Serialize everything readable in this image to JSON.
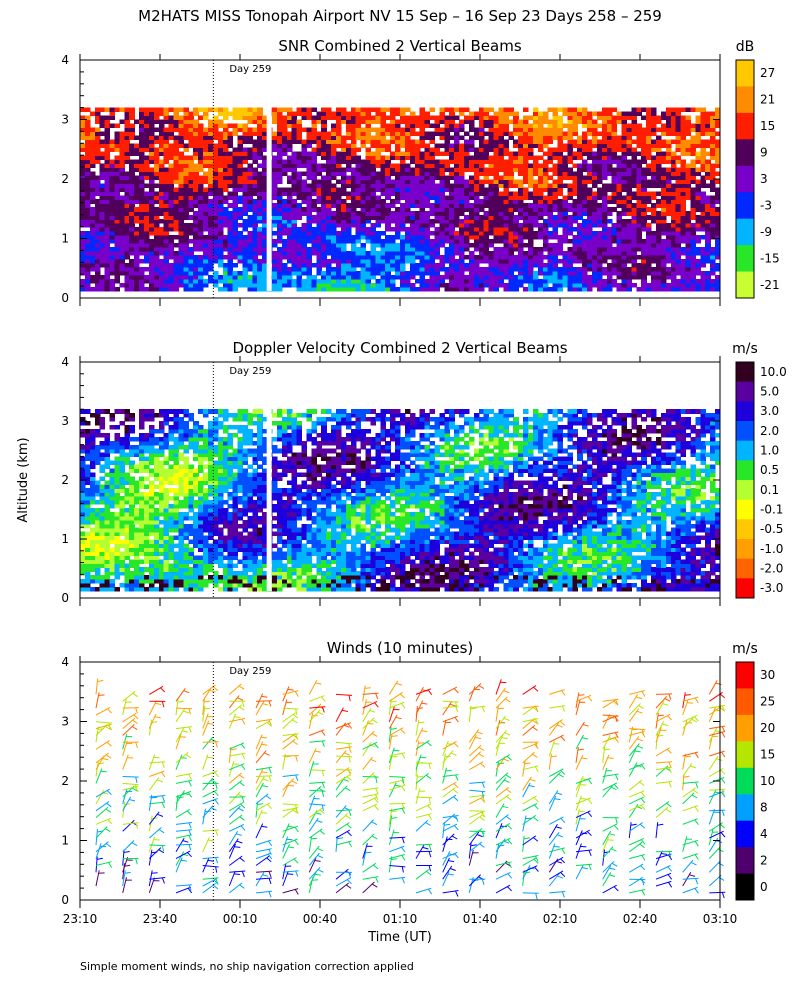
{
  "page": {
    "title": "M2HATS MISS Tonopah Airport NV  15 Sep – 16 Sep 23 Days 258 – 259",
    "ylabel": "Altitude (km)",
    "xlabel": "Time (UT)",
    "footnote": "Simple moment winds, no ship navigation correction applied",
    "day_marker_label": "Day 259"
  },
  "chart_data": [
    {
      "type": "heatmap",
      "title": "SNR Combined 2 Vertical Beams",
      "unit": "dB",
      "x_ticks": [
        "23:10",
        "23:40",
        "00:10",
        "00:40",
        "01:10",
        "01:40",
        "02:10",
        "02:40",
        "03:10"
      ],
      "y_ticks": [
        "0",
        "1",
        "2",
        "3",
        "4"
      ],
      "ylim": [
        0,
        4
      ],
      "colorbar_labels": [
        "27",
        "21",
        "15",
        "9",
        "3",
        "-3",
        "-9",
        "-15",
        "-21"
      ],
      "colors": [
        "#ffc800",
        "#ff8c00",
        "#ff1e00",
        "#50005a",
        "#7800c8",
        "#0028ff",
        "#00b4ff",
        "#28e628",
        "#c8ff32"
      ],
      "data_top_km": 3.2,
      "day_marker_time": "00:00"
    },
    {
      "type": "heatmap",
      "title": "Doppler Velocity Combined 2 Vertical Beams",
      "unit": "m/s",
      "x_ticks": [
        "23:10",
        "23:40",
        "00:10",
        "00:40",
        "01:10",
        "01:40",
        "02:10",
        "02:40",
        "03:10"
      ],
      "y_ticks": [
        "0",
        "1",
        "2",
        "3",
        "4"
      ],
      "ylim": [
        0,
        4
      ],
      "colorbar_labels": [
        "10.0",
        "5.0",
        "3.0",
        "2.0",
        "1.0",
        "0.5",
        "0.1",
        "-0.1",
        "-0.5",
        "-1.0",
        "-2.0",
        "-3.0"
      ],
      "colors": [
        "#32001e",
        "#5a00a0",
        "#1e00dc",
        "#0050ff",
        "#00b4ff",
        "#28e628",
        "#b4ff32",
        "#ffff00",
        "#ffc800",
        "#ffa000",
        "#ff6400",
        "#ff0000"
      ],
      "data_top_km": 3.2,
      "day_marker_time": "00:00"
    },
    {
      "type": "scatter",
      "title": "Winds (10 minutes)",
      "unit": "m/s",
      "x_ticks": [
        "23:10",
        "23:40",
        "00:10",
        "00:40",
        "01:10",
        "01:40",
        "02:10",
        "02:40",
        "03:10"
      ],
      "y_ticks": [
        "0",
        "1",
        "2",
        "3",
        "4"
      ],
      "ylim": [
        0,
        4
      ],
      "colorbar_labels": [
        "30",
        "25",
        "20",
        "15",
        "10",
        "8",
        "4",
        "2",
        "0"
      ],
      "colors": [
        "#ff0000",
        "#ff5a00",
        "#ffa000",
        "#b4e600",
        "#00dc5a",
        "#00a0ff",
        "#0000ff",
        "#50006e",
        "#000000"
      ],
      "barb_columns_time": [
        "23:10",
        "23:20",
        "23:30",
        "23:40",
        "23:50",
        "00:00",
        "00:10",
        "00:20",
        "00:30",
        "00:40",
        "00:50",
        "01:00",
        "01:10",
        "01:20",
        "01:30",
        "01:40",
        "01:50",
        "02:00",
        "02:10",
        "02:20",
        "02:30",
        "02:40",
        "02:50",
        "03:00",
        "03:10"
      ],
      "day_marker_time": "00:00"
    }
  ]
}
